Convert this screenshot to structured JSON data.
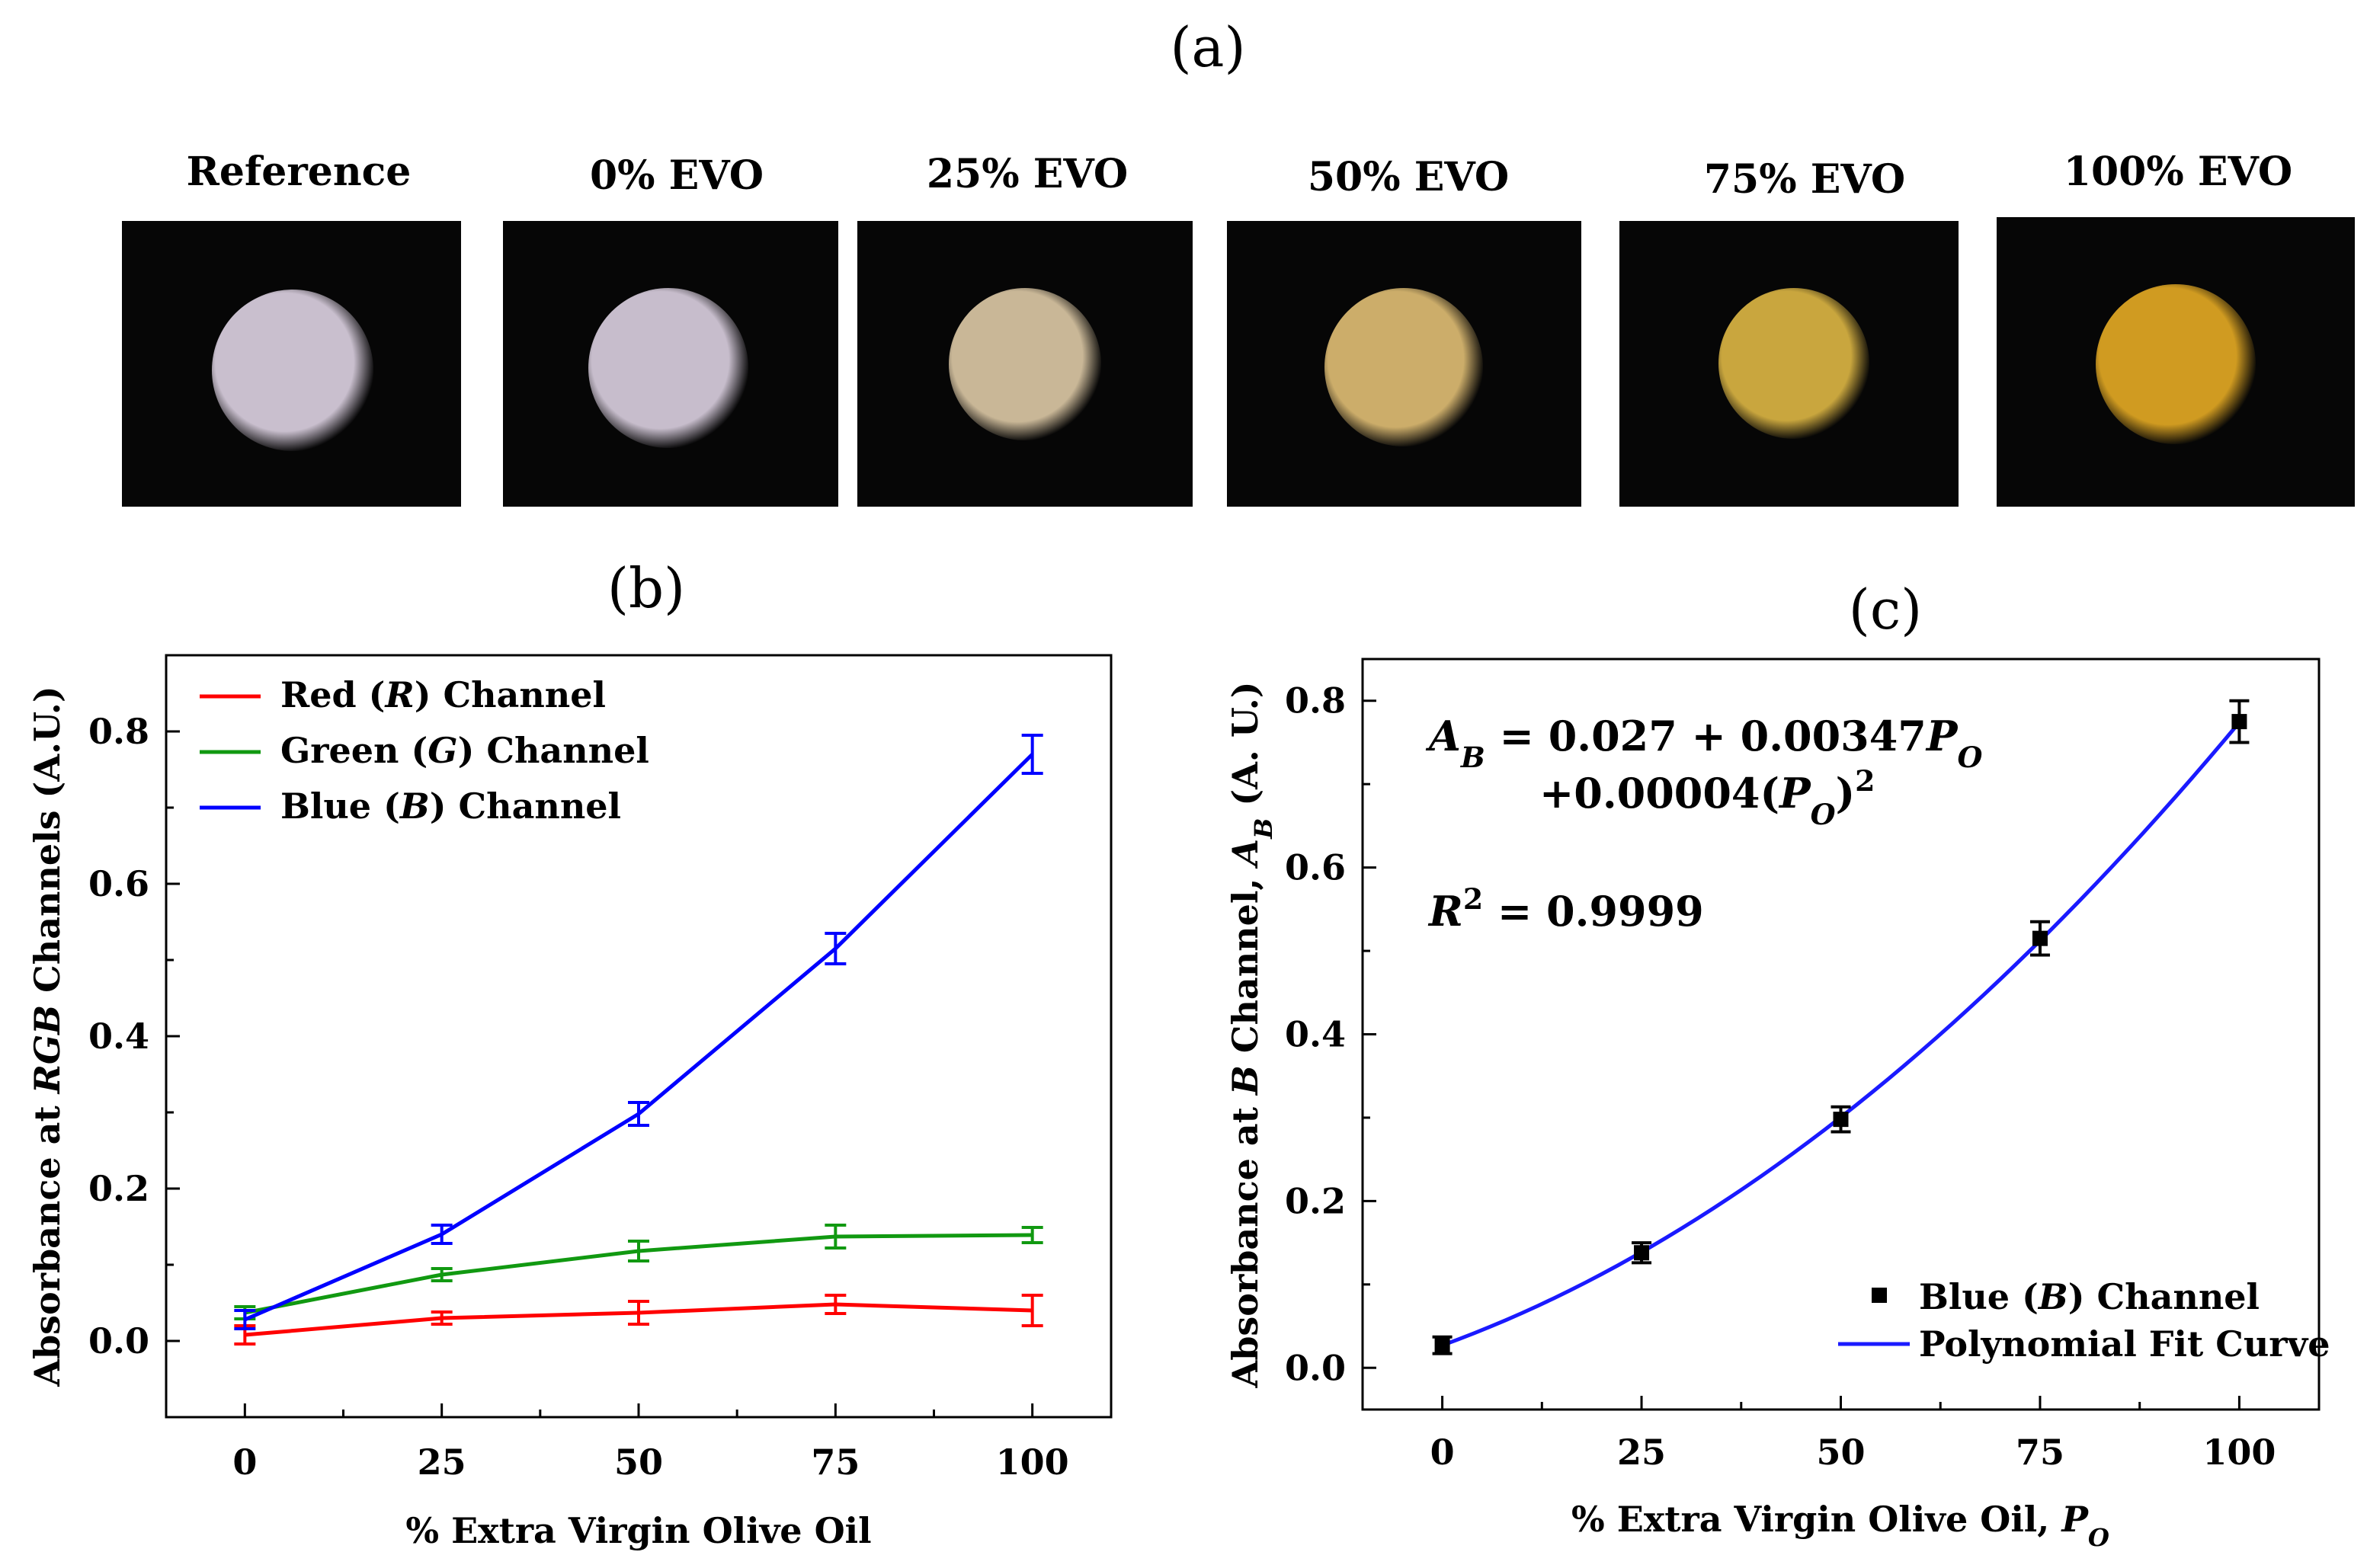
{
  "panel_a": {
    "label": "(a)",
    "photos": [
      {
        "label": "Reference",
        "color": "#c9bfce"
      },
      {
        "label": "0% EVO",
        "color": "#c7bdcc"
      },
      {
        "label": "25% EVO",
        "color": "#c9b797"
      },
      {
        "label": "50% EVO",
        "color": "#ccad6a"
      },
      {
        "label": "75% EVO",
        "color": "#c9a63e"
      },
      {
        "label": "100% EVO",
        "color": "#d09b21"
      }
    ]
  },
  "chart_data": [
    {
      "type": "line",
      "panel_label": "(b)",
      "x": [
        0,
        25,
        50,
        75,
        100
      ],
      "xlabel": "% Extra Virgin Olive Oil",
      "ylabel": "Absorbance at RGB Channels (A.U.)",
      "xlim": [
        -10,
        110
      ],
      "ylim": [
        -0.1,
        0.9
      ],
      "xticks": [
        "0",
        "25",
        "50",
        "75",
        "100"
      ],
      "yticks": [
        "0.0",
        "0.2",
        "0.4",
        "0.6",
        "0.8"
      ],
      "legend_position": "top-left",
      "series": [
        {
          "name": "Red (R) Channel",
          "color": "#ff0000",
          "values": [
            0.008,
            0.03,
            0.037,
            0.048,
            0.04
          ],
          "errors": [
            0.012,
            0.008,
            0.015,
            0.012,
            0.02
          ]
        },
        {
          "name": "Green (G) Channel",
          "color": "#119911",
          "values": [
            0.037,
            0.087,
            0.118,
            0.137,
            0.139
          ],
          "errors": [
            0.008,
            0.008,
            0.013,
            0.015,
            0.01
          ]
        },
        {
          "name": "Blue (B) Channel",
          "color": "#0000ff",
          "values": [
            0.028,
            0.14,
            0.298,
            0.515,
            0.77
          ],
          "errors": [
            0.012,
            0.012,
            0.015,
            0.02,
            0.025
          ]
        }
      ]
    },
    {
      "type": "scatter",
      "panel_label": "(c)",
      "x": [
        0,
        25,
        50,
        75,
        100
      ],
      "xlabel": "% Extra Virgin Olive Oil, PO",
      "ylabel": "Absorbance at B Channel, AB (A. U.)",
      "xlim": [
        -10,
        110
      ],
      "ylim": [
        -0.05,
        0.85
      ],
      "xticks": [
        "0",
        "25",
        "50",
        "75",
        "100"
      ],
      "yticks": [
        "0.0",
        "0.2",
        "0.4",
        "0.6",
        "0.8"
      ],
      "legend_position": "bottom-right",
      "series": [
        {
          "name": "Blue (B) Channel",
          "color": "#000000",
          "values": [
            0.027,
            0.138,
            0.298,
            0.515,
            0.775
          ],
          "errors": [
            0.01,
            0.012,
            0.015,
            0.02,
            0.025
          ]
        }
      ],
      "fit": {
        "name": "Polynomial Fit Curve",
        "color": "#1a1aff",
        "intercept": 0.027,
        "linear": 0.00347,
        "quadratic": 4e-05
      },
      "equation_line1": "AB = 0.027 + 0.00347PO",
      "equation_line2": "+0.00004(PO)2",
      "r_squared": "R2 = 0.9999"
    }
  ]
}
